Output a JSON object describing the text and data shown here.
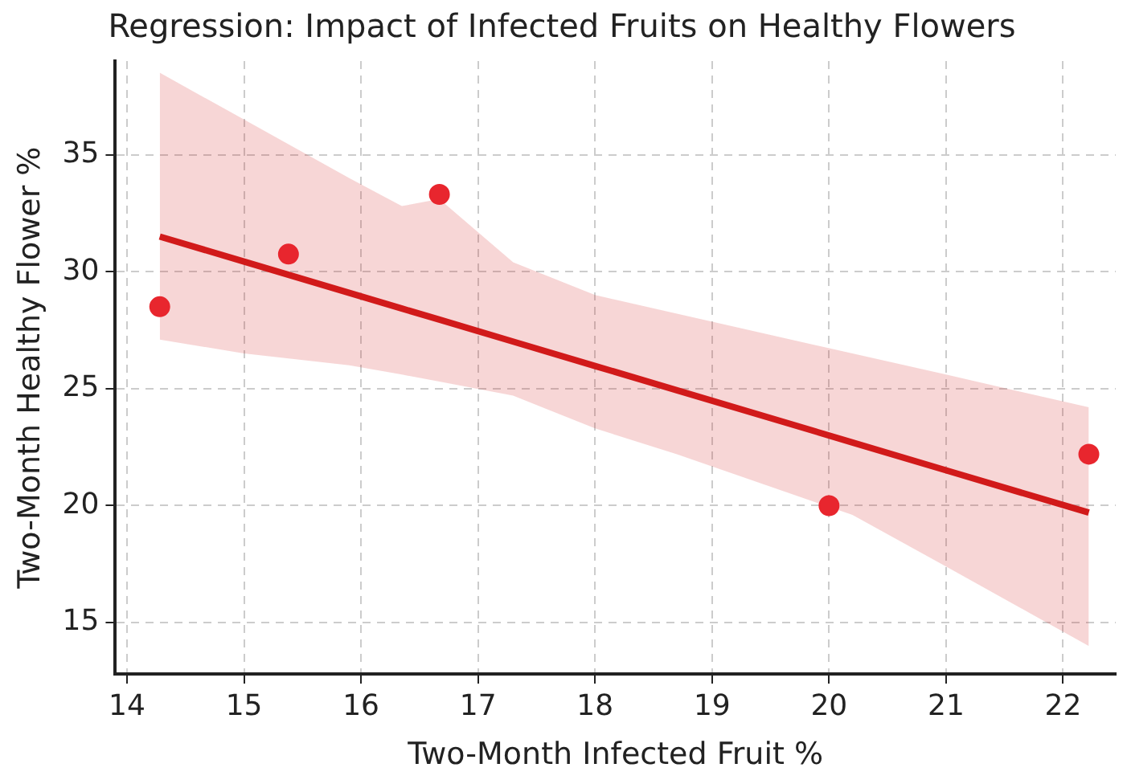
{
  "chart_data": {
    "type": "scatter",
    "title": "Regression: Impact of Infected Fruits on Healthy Flowers",
    "xlabel": "Two-Month Infected Fruit %",
    "ylabel": "Two-Month Healthy Flower %",
    "series": [
      {
        "marker": "circle",
        "color": "#e8262e",
        "x": [
          14.28,
          15.38,
          16.67,
          20,
          22.22
        ],
        "values": [
          28.5,
          30.75,
          33.3,
          20,
          22.2
        ]
      },
      {
        "type": "line",
        "color": "#d11a1a",
        "x": [
          14.28,
          15,
          15.9,
          16.35,
          16.67,
          17.3,
          18,
          18.7,
          20.2,
          21,
          22.22
        ],
        "values": [
          31.5,
          30.43,
          29.09,
          28.42,
          27.95,
          27.01,
          25.97,
          24.93,
          22.7,
          21.51,
          19.7
        ],
        "lower": [
          27.1,
          26.5,
          26.0,
          25.6,
          25.3,
          24.7,
          23.3,
          22.2,
          19.6,
          17.4,
          14.0
        ],
        "upper": [
          38.5,
          36.5,
          34.0,
          32.8,
          33.1,
          30.4,
          29.0,
          28.2,
          26.5,
          25.6,
          24.2
        ]
      }
    ],
    "xlim": [
      13.9,
      22.45
    ],
    "xticks": [
      14,
      15,
      16,
      17,
      18,
      19,
      20,
      21,
      22
    ],
    "ylim": [
      12.8,
      39
    ],
    "yticks": [
      15,
      20,
      25,
      30,
      35
    ],
    "grid": true,
    "legend": false,
    "line_style": "solid"
  }
}
